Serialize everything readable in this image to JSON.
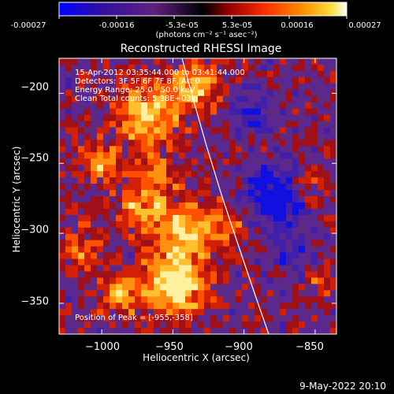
{
  "colorbar": {
    "ticks": [
      "-0.00027",
      "-0.00016",
      "-5.3e-05",
      "5.3e-05",
      "0.00016",
      "0.00027"
    ],
    "tick_values": [
      -0.00027,
      -0.00016,
      -5.3e-05,
      5.3e-05,
      0.00016,
      0.00027
    ],
    "unit": "(photons cm⁻² s⁻¹ asec⁻²)",
    "colors": [
      "#0000ff",
      "#3a0080",
      "#6020a0",
      "#000000",
      "#c00000",
      "#ff5000",
      "#ffc000",
      "#ffffff"
    ]
  },
  "plot": {
    "title": "Reconstructed RHESSI Image",
    "info_lines": [
      "15-Apr-2012 03:35:44.000 to 03:41:44.000",
      "Detectors: 3F 5F 6F 7F 8F, Att 0",
      "Energy Range: 25.0 - 50.0 keV",
      "Clean    Total counts: 5.38E+03"
    ],
    "peak_label": "Position of Peak = [-955,-358]",
    "xlabel": "Heliocentric X (arcsec)",
    "ylabel": "Heliocentric Y (arcsec)",
    "xticks": [
      "−1000",
      "−950",
      "−900",
      "−850"
    ],
    "yticks": [
      "−200",
      "−250",
      "−300",
      "−350"
    ],
    "x_range": [
      -1030,
      -835
    ],
    "y_range": [
      -372,
      -175
    ],
    "xtick_values": [
      -1000,
      -950,
      -900,
      -850
    ],
    "ytick_values": [
      -200,
      -250,
      -300,
      -350
    ]
  },
  "footer": {
    "date": "9-May-2022 20:10"
  }
}
